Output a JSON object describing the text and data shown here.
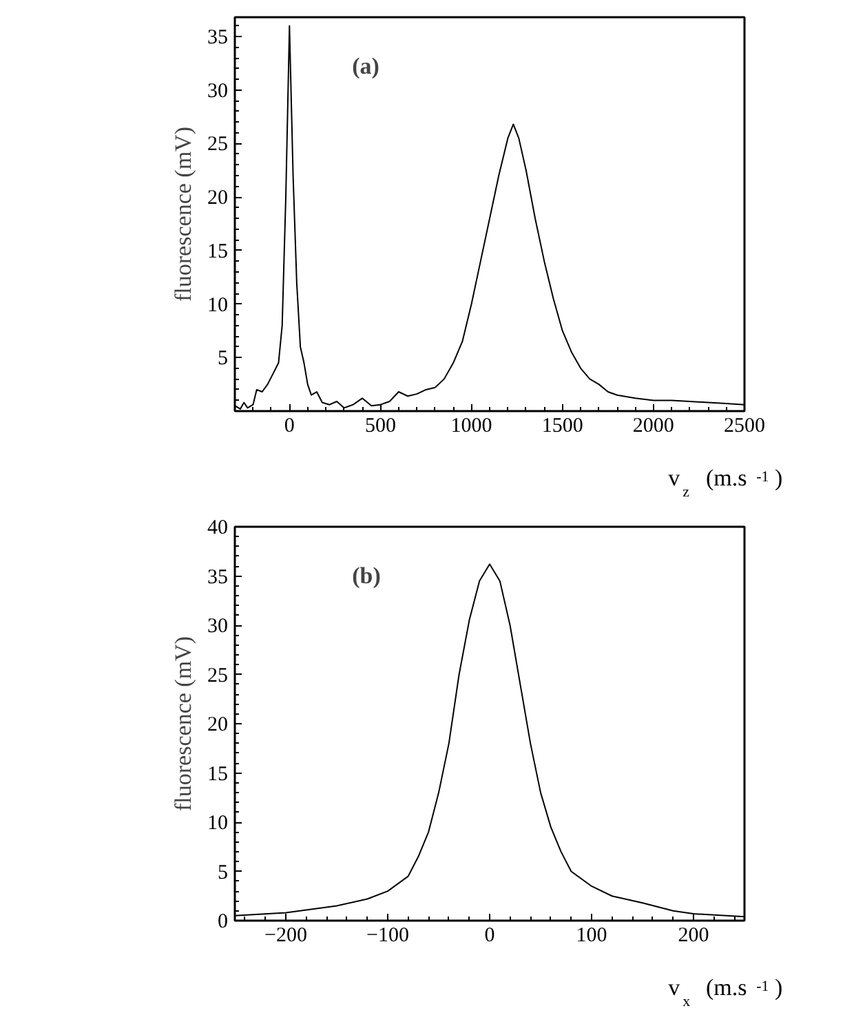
{
  "chart_data": [
    {
      "type": "line",
      "annotations": [
        "(a)"
      ],
      "xlabel": "v$_{z}$ (m.s$^{-1}$)",
      "ylabel": "fluorescence (mV)",
      "color": "#000000",
      "line_style": "solid",
      "grid": false,
      "xlim": [
        -300,
        2500
      ],
      "ylim": [
        0,
        36.8
      ],
      "xticks": [
        0,
        500,
        1000,
        1500,
        2000,
        2500
      ],
      "yticks": [
        5,
        10,
        15,
        20,
        25,
        30,
        35
      ],
      "x": [
        -300,
        -270,
        -250,
        -230,
        -200,
        -180,
        -150,
        -120,
        -90,
        -60,
        -40,
        -20,
        0,
        20,
        40,
        60,
        80,
        100,
        120,
        150,
        180,
        220,
        260,
        300,
        350,
        400,
        450,
        500,
        550,
        600,
        650,
        700,
        750,
        800,
        850,
        900,
        950,
        1000,
        1050,
        1100,
        1150,
        1200,
        1230,
        1260,
        1300,
        1350,
        1400,
        1450,
        1500,
        1550,
        1600,
        1650,
        1700,
        1750,
        1800,
        1900,
        2000,
        2100,
        2200,
        2300,
        2400,
        2500
      ],
      "values": [
        0.5,
        0.2,
        0.8,
        0.3,
        0.6,
        2,
        1.8,
        2.5,
        3.5,
        4.5,
        8,
        20,
        36,
        22,
        12,
        6,
        4.5,
        2.5,
        1.5,
        1.8,
        0.8,
        0.6,
        0.9,
        0.3,
        0.6,
        1.2,
        0.5,
        0.6,
        0.9,
        1.8,
        1.4,
        1.6,
        2,
        2.2,
        3,
        4.5,
        6.5,
        10,
        14,
        18,
        22,
        25.5,
        26.8,
        25.5,
        22.5,
        18,
        14,
        10.5,
        7.5,
        5.5,
        4,
        3,
        2.5,
        1.8,
        1.5,
        1.2,
        1,
        1,
        0.9,
        0.8,
        0.7,
        0.6
      ]
    },
    {
      "type": "line",
      "annotations": [
        "(b)"
      ],
      "xlabel": "v$_{x}$ (m.s$^{-1}$)",
      "ylabel": "fluorescence (mV)",
      "color": "#000000",
      "line_style": "solid",
      "grid": false,
      "xlim": [
        -250,
        250
      ],
      "ylim": [
        0,
        40
      ],
      "xticks": [
        -200,
        -100,
        0,
        100,
        200
      ],
      "yticks": [
        0,
        5,
        10,
        15,
        20,
        25,
        30,
        35,
        40
      ],
      "x": [
        -250,
        -200,
        -150,
        -120,
        -100,
        -80,
        -70,
        -60,
        -50,
        -40,
        -30,
        -20,
        -10,
        0,
        10,
        20,
        30,
        40,
        50,
        60,
        70,
        80,
        100,
        120,
        150,
        180,
        200,
        250
      ],
      "values": [
        0.5,
        0.8,
        1.5,
        2.2,
        3,
        4.5,
        6.5,
        9,
        13,
        18,
        25,
        30.5,
        34.5,
        36.2,
        34.5,
        30,
        24,
        18,
        13,
        9.5,
        7,
        5,
        3.5,
        2.5,
        1.8,
        1,
        0.7,
        0.4
      ]
    }
  ]
}
